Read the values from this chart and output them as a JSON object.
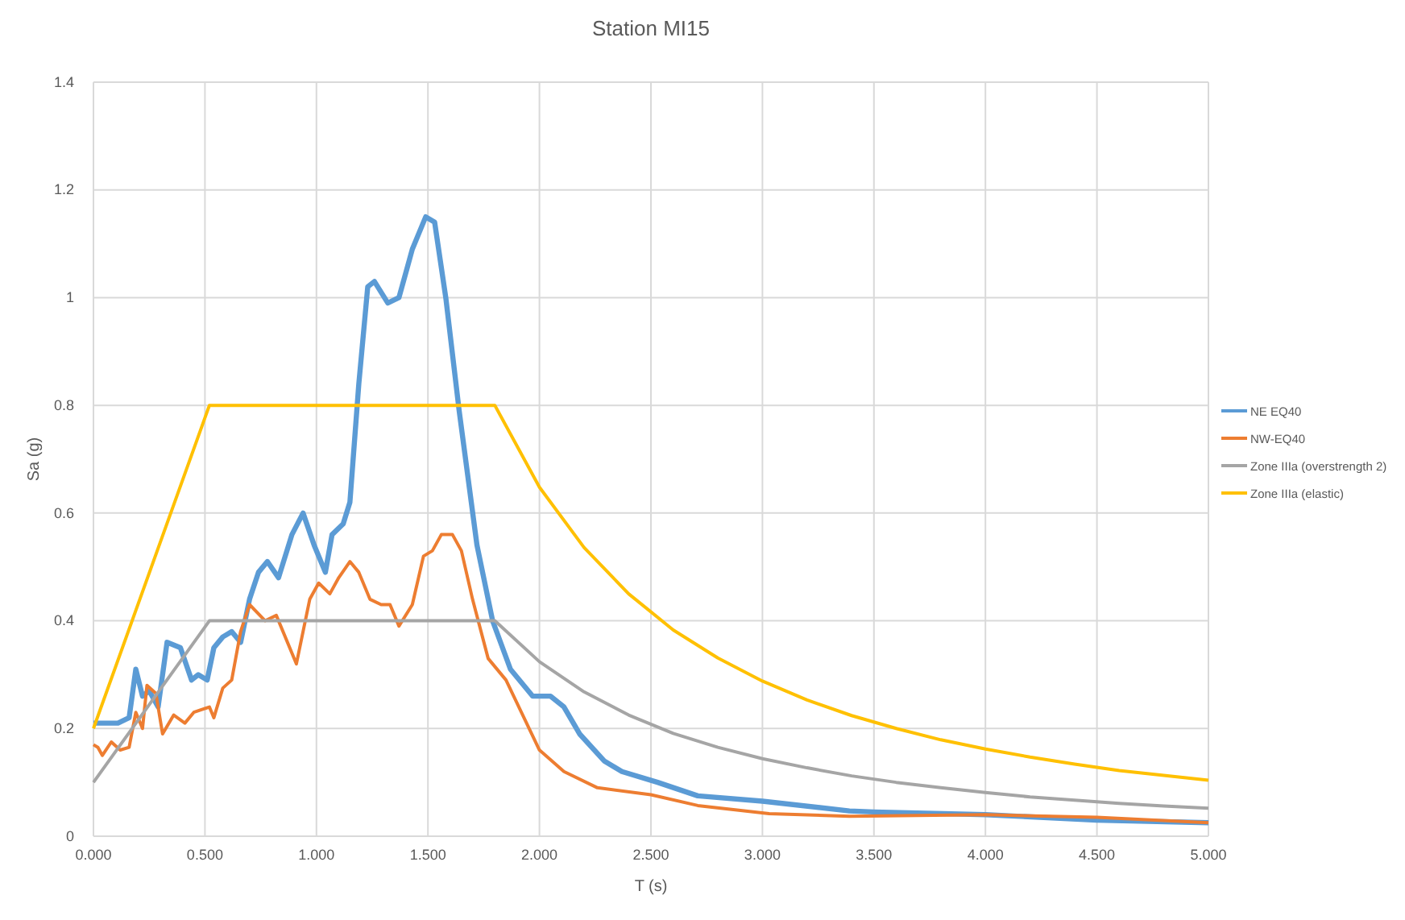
{
  "chart_data": {
    "type": "line",
    "title": "Station MI15",
    "xlabel": "T (s)",
    "ylabel": "Sa (g)",
    "xlim": [
      0,
      5
    ],
    "xticks": [
      {
        "value": 0,
        "label": "0.000"
      },
      {
        "value": 0.5,
        "label": "0.500"
      },
      {
        "value": 1,
        "label": "1.000"
      },
      {
        "value": 1.5,
        "label": "1.500"
      },
      {
        "value": 2,
        "label": "2.000"
      },
      {
        "value": 2.5,
        "label": "2.500"
      },
      {
        "value": 3,
        "label": "3.000"
      },
      {
        "value": 3.5,
        "label": "3.500"
      },
      {
        "value": 4,
        "label": "4.000"
      },
      {
        "value": 4.5,
        "label": "4.500"
      },
      {
        "value": 5,
        "label": "5.000"
      }
    ],
    "ylim": [
      0,
      1.4
    ],
    "yticks": [
      0,
      0.2,
      0.4,
      0.6,
      0.8,
      1,
      1.2,
      1.4
    ],
    "grid": true,
    "legend": "right",
    "marker": "none",
    "line_style": "solid",
    "series": [
      {
        "name": "NE EQ40",
        "color": "#5b9bd5",
        "x": [
          0,
          0.11,
          0.16,
          0.19,
          0.22,
          0.25,
          0.29,
          0.33,
          0.39,
          0.44,
          0.47,
          0.51,
          0.54,
          0.58,
          0.62,
          0.66,
          0.7,
          0.74,
          0.78,
          0.83,
          0.89,
          0.94,
          0.99,
          1.04,
          1.07,
          1.12,
          1.15,
          1.19,
          1.23,
          1.26,
          1.32,
          1.37,
          1.43,
          1.49,
          1.53,
          1.58,
          1.64,
          1.72,
          1.79,
          1.87,
          1.97,
          2.05,
          2.11,
          2.18,
          2.29,
          2.37,
          2.53,
          2.71,
          3,
          3.39,
          3.5,
          4,
          4.5,
          5
        ],
        "values": [
          0.21,
          0.21,
          0.22,
          0.31,
          0.26,
          0.27,
          0.24,
          0.36,
          0.35,
          0.29,
          0.3,
          0.29,
          0.35,
          0.37,
          0.38,
          0.36,
          0.44,
          0.49,
          0.51,
          0.48,
          0.56,
          0.6,
          0.54,
          0.49,
          0.56,
          0.58,
          0.62,
          0.84,
          1.02,
          1.03,
          0.99,
          1,
          1.09,
          1.15,
          1.14,
          1,
          0.79,
          0.54,
          0.4,
          0.31,
          0.26,
          0.26,
          0.24,
          0.19,
          0.14,
          0.12,
          0.1,
          0.075,
          0.065,
          0.047,
          0.045,
          0.04,
          0.03,
          0.025
        ]
      },
      {
        "name": "NW-EQ40",
        "color": "#ed7d31",
        "x": [
          0,
          0.02,
          0.04,
          0.08,
          0.12,
          0.16,
          0.19,
          0.22,
          0.24,
          0.28,
          0.31,
          0.36,
          0.41,
          0.45,
          0.52,
          0.54,
          0.58,
          0.62,
          0.66,
          0.7,
          0.77,
          0.82,
          0.91,
          0.97,
          1.01,
          1.06,
          1.1,
          1.15,
          1.19,
          1.24,
          1.29,
          1.33,
          1.37,
          1.43,
          1.48,
          1.52,
          1.56,
          1.61,
          1.65,
          1.7,
          1.77,
          1.85,
          2,
          2.11,
          2.26,
          2.5,
          2.71,
          3.03,
          3.39,
          4,
          4.5,
          5
        ],
        "values": [
          0.17,
          0.165,
          0.15,
          0.175,
          0.16,
          0.165,
          0.23,
          0.2,
          0.28,
          0.265,
          0.19,
          0.225,
          0.21,
          0.23,
          0.24,
          0.22,
          0.275,
          0.29,
          0.38,
          0.43,
          0.4,
          0.41,
          0.32,
          0.44,
          0.47,
          0.45,
          0.48,
          0.51,
          0.49,
          0.44,
          0.43,
          0.43,
          0.39,
          0.43,
          0.52,
          0.53,
          0.56,
          0.56,
          0.53,
          0.44,
          0.33,
          0.29,
          0.16,
          0.12,
          0.09,
          0.077,
          0.057,
          0.042,
          0.037,
          0.04,
          0.035,
          0.025
        ]
      },
      {
        "name": "Zone IIIa (overstrength 2)",
        "color": "#a5a5a5",
        "x": [
          0,
          0.52,
          1.8,
          2,
          2.2,
          2.4,
          2.6,
          2.8,
          3,
          3.2,
          3.4,
          3.6,
          3.8,
          4,
          4.2,
          4.4,
          4.6,
          4.8,
          5
        ],
        "values": [
          0.1,
          0.4,
          0.4,
          0.324,
          0.268,
          0.225,
          0.191,
          0.165,
          0.144,
          0.127,
          0.112,
          0.1,
          0.09,
          0.081,
          0.073,
          0.067,
          0.061,
          0.056,
          0.052
        ]
      },
      {
        "name": "Zone IIIa (elastic)",
        "color": "#ffc000",
        "x": [
          0,
          0.52,
          1.8,
          2,
          2.2,
          2.4,
          2.6,
          2.8,
          3,
          3.2,
          3.4,
          3.6,
          3.8,
          4,
          4.2,
          4.4,
          4.6,
          4.8,
          5
        ],
        "values": [
          0.2,
          0.8,
          0.8,
          0.648,
          0.536,
          0.45,
          0.383,
          0.331,
          0.288,
          0.253,
          0.224,
          0.2,
          0.179,
          0.162,
          0.147,
          0.134,
          0.122,
          0.113,
          0.104
        ]
      }
    ]
  }
}
